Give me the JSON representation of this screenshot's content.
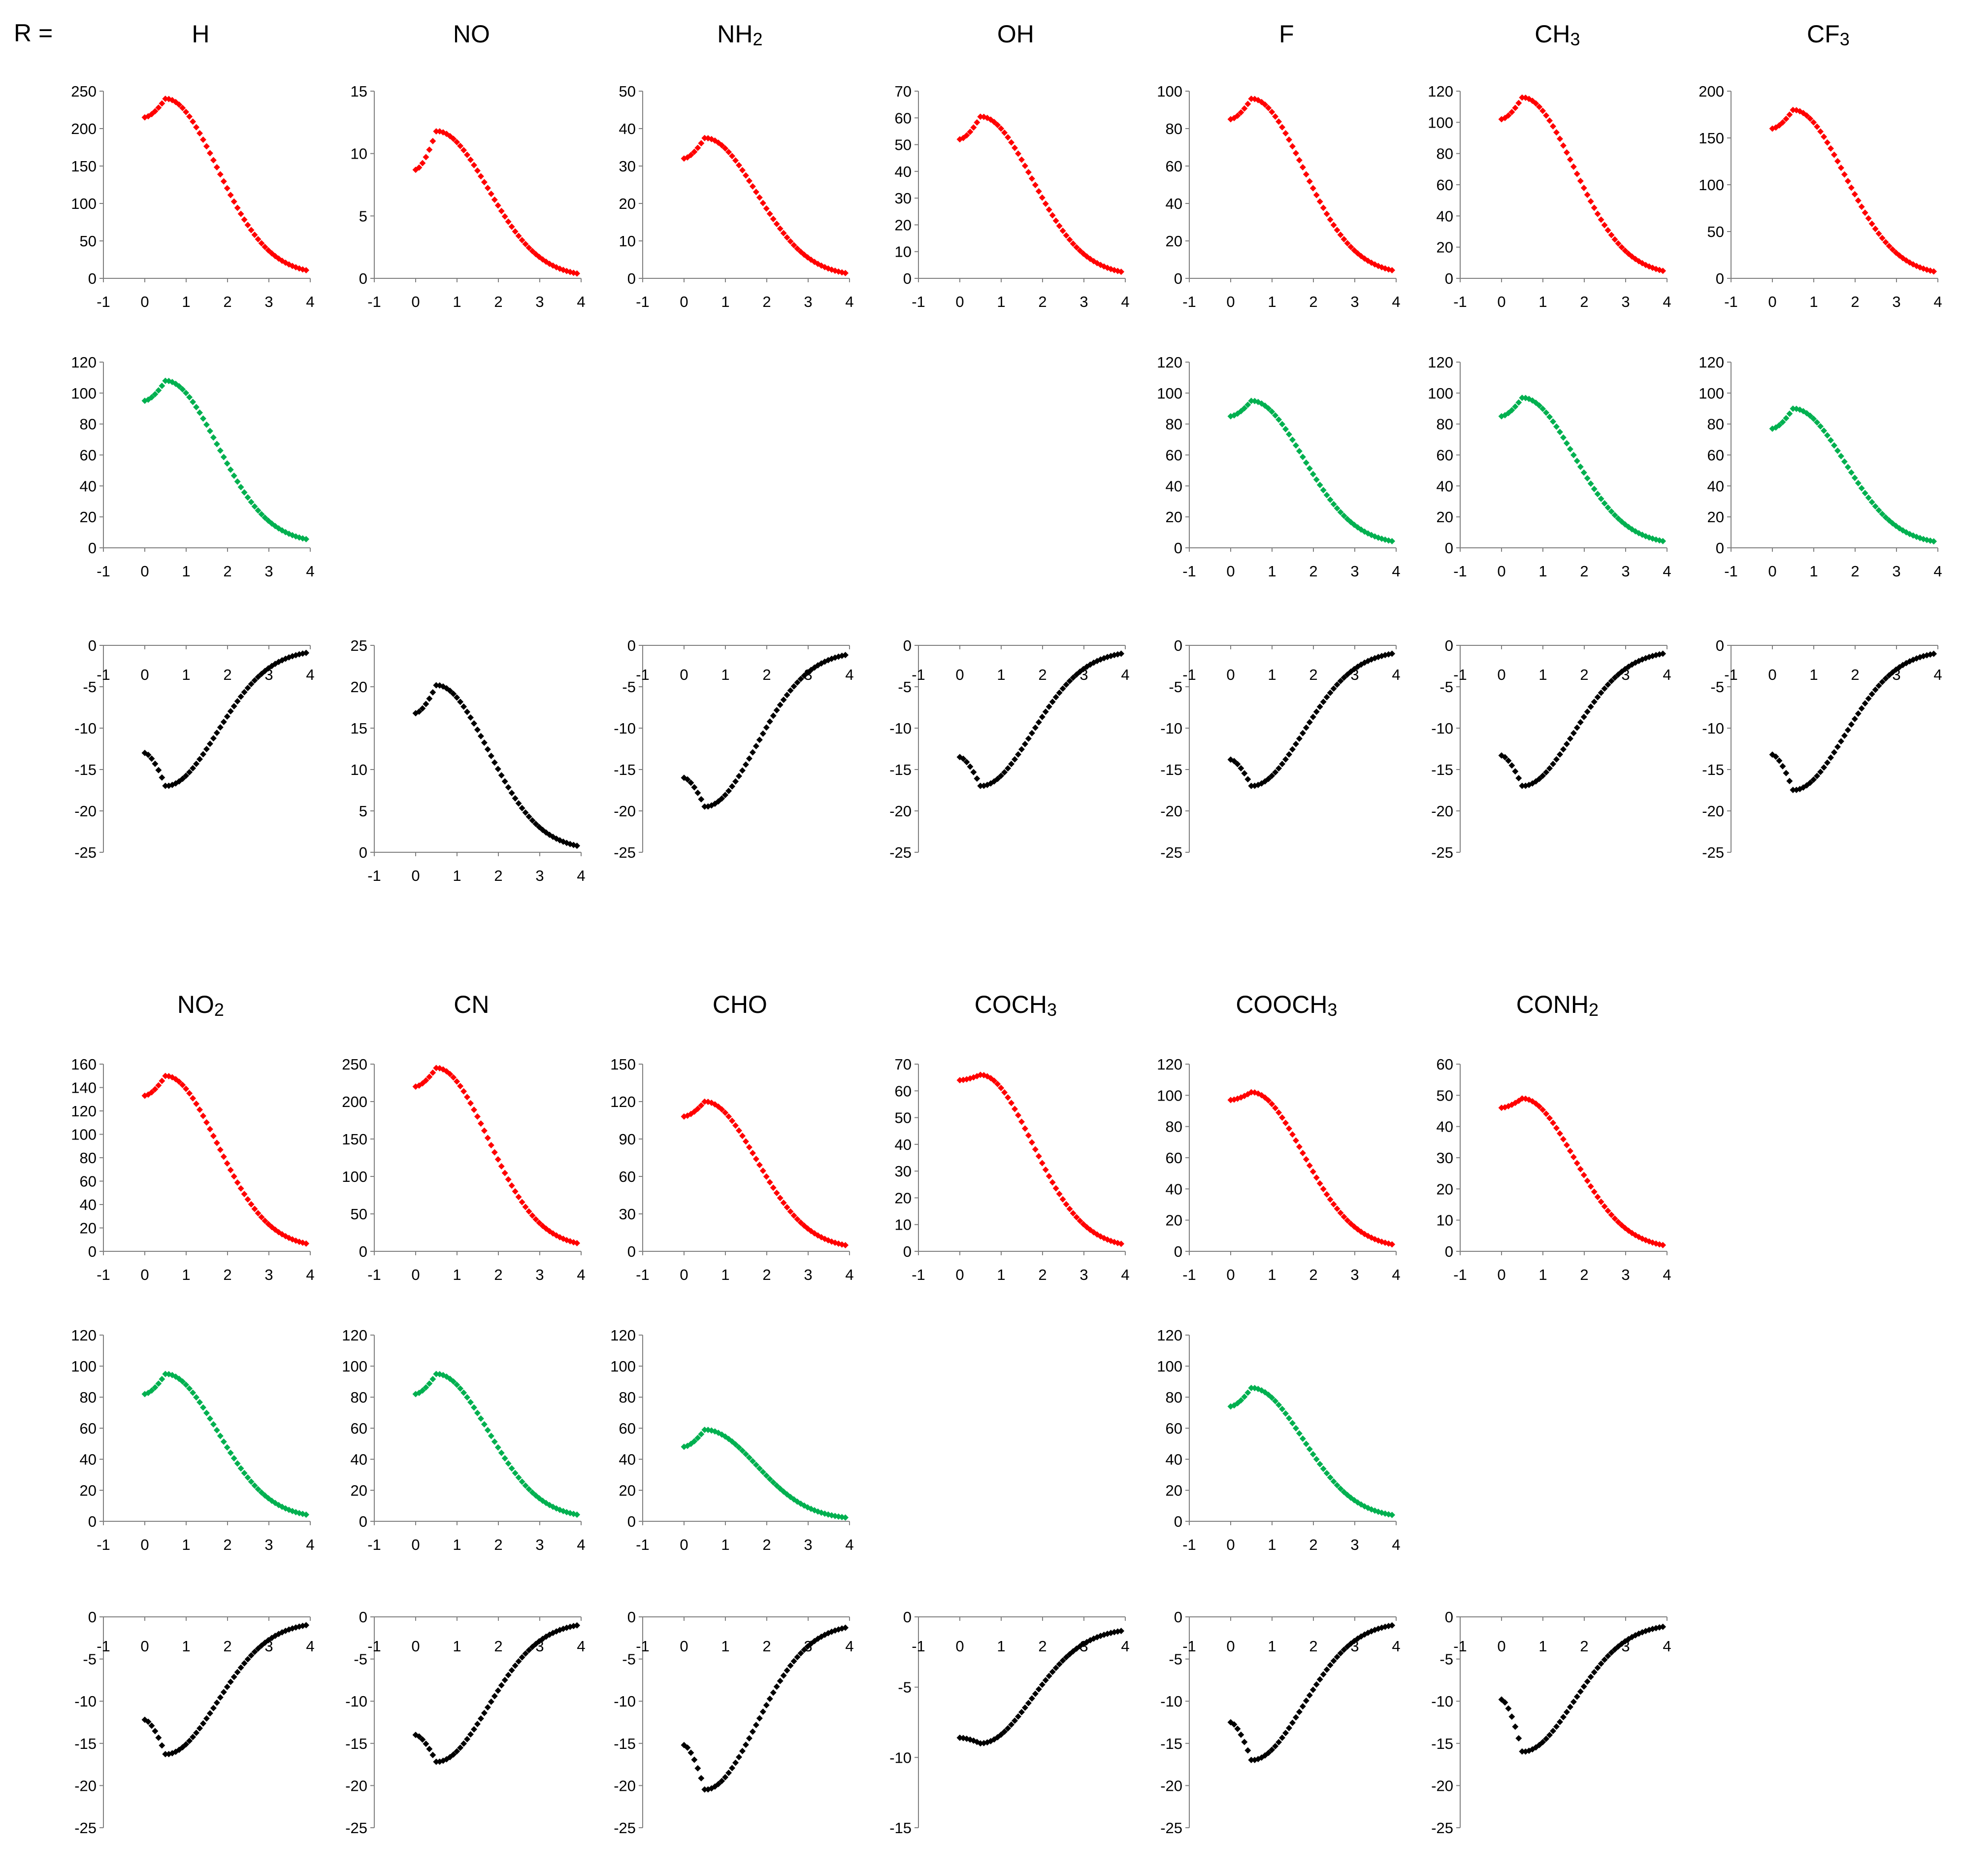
{
  "r_label": "R =",
  "chart_data": [
    {
      "column": "H",
      "series": "red",
      "type": "scatter",
      "ylim": [
        0,
        250
      ],
      "yticks": [
        0,
        50,
        100,
        150,
        200,
        250
      ],
      "x_range": [
        -1,
        4
      ],
      "xticks": [
        -1,
        0,
        1,
        2,
        3,
        4
      ],
      "peak": 240,
      "start": 215,
      "tail": 5,
      "color": "#ff0000"
    },
    {
      "column": "NO",
      "series": "red",
      "type": "scatter",
      "ylim": [
        0,
        15
      ],
      "yticks": [
        0,
        5,
        10,
        15
      ],
      "x_range": [
        -1,
        4
      ],
      "xticks": [
        -1,
        0,
        1,
        2,
        3,
        4
      ],
      "peak": 11.8,
      "start": 8.7,
      "tail": 0.1,
      "color": "#ff0000"
    },
    {
      "column": "NH2",
      "series": "red",
      "type": "scatter",
      "ylim": [
        0,
        50
      ],
      "yticks": [
        0,
        10,
        20,
        30,
        40,
        50
      ],
      "x_range": [
        -1,
        4
      ],
      "xticks": [
        -1,
        0,
        1,
        2,
        3,
        4
      ],
      "peak": 37.5,
      "start": 32,
      "tail": 0.5,
      "color": "#ff0000"
    },
    {
      "column": "OH",
      "series": "red",
      "type": "scatter",
      "ylim": [
        0,
        70
      ],
      "yticks": [
        0,
        10,
        20,
        30,
        40,
        50,
        60,
        70
      ],
      "x_range": [
        -1,
        4
      ],
      "xticks": [
        -1,
        0,
        1,
        2,
        3,
        4
      ],
      "peak": 60.5,
      "start": 52,
      "tail": 1,
      "color": "#ff0000"
    },
    {
      "column": "F",
      "series": "red",
      "type": "scatter",
      "ylim": [
        0,
        100
      ],
      "yticks": [
        0,
        20,
        40,
        60,
        80,
        100
      ],
      "x_range": [
        -1,
        4
      ],
      "xticks": [
        -1,
        0,
        1,
        2,
        3,
        4
      ],
      "peak": 96,
      "start": 85,
      "tail": 2,
      "color": "#ff0000"
    },
    {
      "column": "CH3",
      "series": "red",
      "type": "scatter",
      "ylim": [
        0,
        120
      ],
      "yticks": [
        0,
        20,
        40,
        60,
        80,
        100,
        120
      ],
      "x_range": [
        -1,
        4
      ],
      "xticks": [
        -1,
        0,
        1,
        2,
        3,
        4
      ],
      "peak": 116,
      "start": 102,
      "tail": 2,
      "color": "#ff0000"
    },
    {
      "column": "CF3",
      "series": "red",
      "type": "scatter",
      "ylim": [
        0,
        200
      ],
      "yticks": [
        0,
        50,
        100,
        150,
        200
      ],
      "x_range": [
        -1,
        4
      ],
      "xticks": [
        -1,
        0,
        1,
        2,
        3,
        4
      ],
      "peak": 180,
      "start": 160,
      "tail": 3,
      "color": "#ff0000"
    },
    {
      "column": "H",
      "series": "green",
      "type": "scatter",
      "ylim": [
        0,
        120
      ],
      "yticks": [
        0,
        20,
        40,
        60,
        80,
        100,
        120
      ],
      "x_range": [
        -1,
        4
      ],
      "xticks": [
        -1,
        0,
        1,
        2,
        3,
        4
      ],
      "peak": 108,
      "start": 95,
      "tail": 3,
      "color": "#00b050"
    },
    {
      "column": "F",
      "series": "green",
      "type": "scatter",
      "ylim": [
        0,
        120
      ],
      "yticks": [
        0,
        20,
        40,
        60,
        80,
        100,
        120
      ],
      "x_range": [
        -1,
        4
      ],
      "xticks": [
        -1,
        0,
        1,
        2,
        3,
        4
      ],
      "peak": 95,
      "start": 85,
      "tail": 2,
      "color": "#00b050"
    },
    {
      "column": "CH3",
      "series": "green",
      "type": "scatter",
      "ylim": [
        0,
        120
      ],
      "yticks": [
        0,
        20,
        40,
        60,
        80,
        100,
        120
      ],
      "x_range": [
        -1,
        4
      ],
      "xticks": [
        -1,
        0,
        1,
        2,
        3,
        4
      ],
      "peak": 97,
      "start": 85,
      "tail": 2,
      "color": "#00b050"
    },
    {
      "column": "CF3",
      "series": "green",
      "type": "scatter",
      "ylim": [
        0,
        120
      ],
      "yticks": [
        0,
        20,
        40,
        60,
        80,
        100,
        120
      ],
      "x_range": [
        -1,
        4
      ],
      "xticks": [
        -1,
        0,
        1,
        2,
        3,
        4
      ],
      "peak": 90,
      "start": 77,
      "tail": 2,
      "color": "#00b050"
    },
    {
      "column": "H",
      "series": "black",
      "type": "scatter",
      "ylim": [
        -25,
        0
      ],
      "yticks": [
        0,
        -5,
        -10,
        -15,
        -20,
        -25
      ],
      "x_range": [
        -1,
        4
      ],
      "xticks": [
        -1,
        0,
        1,
        2,
        3,
        4
      ],
      "peak": -17,
      "start": -13,
      "tail": -0.5,
      "color": "#000000"
    },
    {
      "column": "NO",
      "series": "black",
      "type": "scatter",
      "ylim": [
        0,
        25
      ],
      "yticks": [
        0,
        5,
        10,
        15,
        20,
        25
      ],
      "x_range": [
        -1,
        4
      ],
      "xticks": [
        -1,
        0,
        1,
        2,
        3,
        4
      ],
      "peak": 20.2,
      "start": 16.8,
      "tail": 0.3,
      "color": "#000000"
    },
    {
      "column": "NH2",
      "series": "black",
      "type": "scatter",
      "ylim": [
        -25,
        0
      ],
      "yticks": [
        0,
        -5,
        -10,
        -15,
        -20,
        -25
      ],
      "x_range": [
        -1,
        4
      ],
      "xticks": [
        -1,
        0,
        1,
        2,
        3,
        4
      ],
      "peak": -19.5,
      "start": -16,
      "tail": -0.7,
      "color": "#000000"
    },
    {
      "column": "OH",
      "series": "black",
      "type": "scatter",
      "ylim": [
        -25,
        0
      ],
      "yticks": [
        0,
        -5,
        -10,
        -15,
        -20,
        -25
      ],
      "x_range": [
        -1,
        4
      ],
      "xticks": [
        -1,
        0,
        1,
        2,
        3,
        4
      ],
      "peak": -17,
      "start": -13.5,
      "tail": -0.6,
      "color": "#000000"
    },
    {
      "column": "F",
      "series": "black",
      "type": "scatter",
      "ylim": [
        -25,
        0
      ],
      "yticks": [
        0,
        -5,
        -10,
        -15,
        -20,
        -25
      ],
      "x_range": [
        -1,
        4
      ],
      "xticks": [
        -1,
        0,
        1,
        2,
        3,
        4
      ],
      "peak": -17,
      "start": -13.8,
      "tail": -0.6,
      "color": "#000000"
    },
    {
      "column": "CH3",
      "series": "black",
      "type": "scatter",
      "ylim": [
        -25,
        0
      ],
      "yticks": [
        0,
        -5,
        -10,
        -15,
        -20,
        -25
      ],
      "x_range": [
        -1,
        4
      ],
      "xticks": [
        -1,
        0,
        1,
        2,
        3,
        4
      ],
      "peak": -17,
      "start": -13.3,
      "tail": -0.6,
      "color": "#000000"
    },
    {
      "column": "CF3",
      "series": "black",
      "type": "scatter",
      "ylim": [
        -25,
        0
      ],
      "yticks": [
        0,
        -5,
        -10,
        -15,
        -20,
        -25
      ],
      "x_range": [
        -1,
        4
      ],
      "xticks": [
        -1,
        0,
        1,
        2,
        3,
        4
      ],
      "peak": -17.5,
      "start": -13.2,
      "tail": -0.6,
      "color": "#000000"
    },
    {
      "column": "NO2",
      "series": "red",
      "type": "scatter",
      "ylim": [
        0,
        160
      ],
      "yticks": [
        0,
        20,
        40,
        60,
        80,
        100,
        120,
        140,
        160
      ],
      "x_range": [
        -1,
        4
      ],
      "xticks": [
        -1,
        0,
        1,
        2,
        3,
        4
      ],
      "peak": 150,
      "start": 133,
      "tail": 3,
      "color": "#ff0000"
    },
    {
      "column": "CN",
      "series": "red",
      "type": "scatter",
      "ylim": [
        0,
        250
      ],
      "yticks": [
        0,
        50,
        100,
        150,
        200,
        250
      ],
      "x_range": [
        -1,
        4
      ],
      "xticks": [
        -1,
        0,
        1,
        2,
        3,
        4
      ],
      "peak": 245,
      "start": 220,
      "tail": 5,
      "color": "#ff0000"
    },
    {
      "column": "CHO",
      "series": "red",
      "type": "scatter",
      "ylim": [
        0,
        150
      ],
      "yticks": [
        0,
        30,
        60,
        90,
        120,
        150
      ],
      "x_range": [
        -1,
        4
      ],
      "xticks": [
        -1,
        0,
        1,
        2,
        3,
        4
      ],
      "peak": 120,
      "start": 108,
      "tail": 2,
      "color": "#ff0000"
    },
    {
      "column": "COCH3",
      "series": "red",
      "type": "scatter",
      "ylim": [
        0,
        70
      ],
      "yticks": [
        0,
        10,
        20,
        30,
        40,
        50,
        60,
        70
      ],
      "x_range": [
        -1,
        4
      ],
      "xticks": [
        -1,
        0,
        1,
        2,
        3,
        4
      ],
      "peak": 66,
      "start": 64,
      "tail": 1.2,
      "color": "#ff0000"
    },
    {
      "column": "COOCH3",
      "series": "red",
      "type": "scatter",
      "ylim": [
        0,
        120
      ],
      "yticks": [
        0,
        20,
        40,
        60,
        80,
        100,
        120
      ],
      "x_range": [
        -1,
        4
      ],
      "xticks": [
        -1,
        0,
        1,
        2,
        3,
        4
      ],
      "peak": 102,
      "start": 97,
      "tail": 2,
      "color": "#ff0000"
    },
    {
      "column": "CONH2",
      "series": "red",
      "type": "scatter",
      "ylim": [
        0,
        60
      ],
      "yticks": [
        0,
        10,
        20,
        30,
        40,
        50,
        60
      ],
      "x_range": [
        -1,
        4
      ],
      "xticks": [
        -1,
        0,
        1,
        2,
        3,
        4
      ],
      "peak": 49,
      "start": 46,
      "tail": 0.8,
      "color": "#ff0000"
    },
    {
      "column": "NO2",
      "series": "green",
      "type": "scatter",
      "ylim": [
        0,
        120
      ],
      "yticks": [
        0,
        20,
        40,
        60,
        80,
        100,
        120
      ],
      "x_range": [
        -1,
        4
      ],
      "xticks": [
        -1,
        0,
        1,
        2,
        3,
        4
      ],
      "peak": 95,
      "start": 82,
      "tail": 2,
      "color": "#00b050"
    },
    {
      "column": "CN",
      "series": "green",
      "type": "scatter",
      "ylim": [
        0,
        120
      ],
      "yticks": [
        0,
        20,
        40,
        60,
        80,
        100,
        120
      ],
      "x_range": [
        -1,
        4
      ],
      "xticks": [
        -1,
        0,
        1,
        2,
        3,
        4
      ],
      "peak": 95,
      "start": 82,
      "tail": 2,
      "color": "#00b050"
    },
    {
      "column": "CHO",
      "series": "green",
      "type": "scatter",
      "ylim": [
        0,
        120
      ],
      "yticks": [
        0,
        20,
        40,
        60,
        80,
        100,
        120
      ],
      "x_range": [
        -1,
        4
      ],
      "xticks": [
        -1,
        0,
        1,
        2,
        3,
        4
      ],
      "peak": 59,
      "start": 48,
      "tail": 1,
      "color": "#00b050"
    },
    {
      "column": "COOCH3",
      "series": "green",
      "type": "scatter",
      "ylim": [
        0,
        120
      ],
      "yticks": [
        0,
        20,
        40,
        60,
        80,
        100,
        120
      ],
      "x_range": [
        -1,
        4
      ],
      "xticks": [
        -1,
        0,
        1,
        2,
        3,
        4
      ],
      "peak": 86,
      "start": 74,
      "tail": 2,
      "color": "#00b050"
    },
    {
      "column": "NO2",
      "series": "black",
      "type": "scatter",
      "ylim": [
        -25,
        0
      ],
      "yticks": [
        0,
        -5,
        -10,
        -15,
        -20,
        -25
      ],
      "x_range": [
        -1,
        4
      ],
      "xticks": [
        -1,
        0,
        1,
        2,
        3,
        4
      ],
      "peak": -16.3,
      "start": -12.2,
      "tail": -0.6,
      "color": "#000000"
    },
    {
      "column": "CN",
      "series": "black",
      "type": "scatter",
      "ylim": [
        -25,
        0
      ],
      "yticks": [
        0,
        -5,
        -10,
        -15,
        -20,
        -25
      ],
      "x_range": [
        -1,
        4
      ],
      "xticks": [
        -1,
        0,
        1,
        2,
        3,
        4
      ],
      "peak": -17.2,
      "start": -14,
      "tail": -0.6,
      "color": "#000000"
    },
    {
      "column": "CHO",
      "series": "black",
      "type": "scatter",
      "ylim": [
        -25,
        0
      ],
      "yticks": [
        0,
        -5,
        -10,
        -15,
        -20,
        -25
      ],
      "x_range": [
        -1,
        4
      ],
      "xticks": [
        -1,
        0,
        1,
        2,
        3,
        4
      ],
      "peak": -20.5,
      "start": -15.2,
      "tail": -0.8,
      "color": "#000000"
    },
    {
      "column": "COCH3",
      "series": "black",
      "type": "scatter",
      "ylim": [
        -15,
        0
      ],
      "yticks": [
        0,
        -5,
        -10,
        -15
      ],
      "x_range": [
        -1,
        4
      ],
      "xticks": [
        -1,
        0,
        1,
        2,
        3,
        4
      ],
      "peak": -9,
      "start": -8.6,
      "tail": -0.8,
      "color": "#000000"
    },
    {
      "column": "COOCH3",
      "series": "black",
      "type": "scatter",
      "ylim": [
        -25,
        0
      ],
      "yticks": [
        0,
        -5,
        -10,
        -15,
        -20,
        -25
      ],
      "x_range": [
        -1,
        4
      ],
      "xticks": [
        -1,
        0,
        1,
        2,
        3,
        4
      ],
      "peak": -17,
      "start": -12.5,
      "tail": -0.6,
      "color": "#000000"
    },
    {
      "column": "CONH2",
      "series": "black",
      "type": "scatter",
      "ylim": [
        -25,
        0
      ],
      "yticks": [
        0,
        -5,
        -10,
        -15,
        -20,
        -25
      ],
      "x_range": [
        -1,
        4
      ],
      "xticks": [
        -1,
        0,
        1,
        2,
        3,
        4
      ],
      "peak": -16,
      "start": -9.8,
      "tail": -0.8,
      "color": "#000000"
    }
  ],
  "columns": [
    {
      "id": "H",
      "base": "H",
      "sub": ""
    },
    {
      "id": "NO",
      "base": "NO",
      "sub": ""
    },
    {
      "id": "NH2",
      "base": "NH",
      "sub": "2"
    },
    {
      "id": "OH",
      "base": "OH",
      "sub": ""
    },
    {
      "id": "F",
      "base": "F",
      "sub": ""
    },
    {
      "id": "CH3",
      "base": "CH",
      "sub": "3"
    },
    {
      "id": "CF3",
      "base": "CF",
      "sub": "3"
    },
    {
      "id": "NO2",
      "base": "NO",
      "sub": "2"
    },
    {
      "id": "CN",
      "base": "CN",
      "sub": ""
    },
    {
      "id": "CHO",
      "base": "CHO",
      "sub": ""
    },
    {
      "id": "COCH3",
      "base": "COCH",
      "sub": "3"
    },
    {
      "id": "COOCH3",
      "base": "COOCH",
      "sub": "3"
    },
    {
      "id": "CONH2",
      "base": "CONH",
      "sub": "2"
    }
  ]
}
